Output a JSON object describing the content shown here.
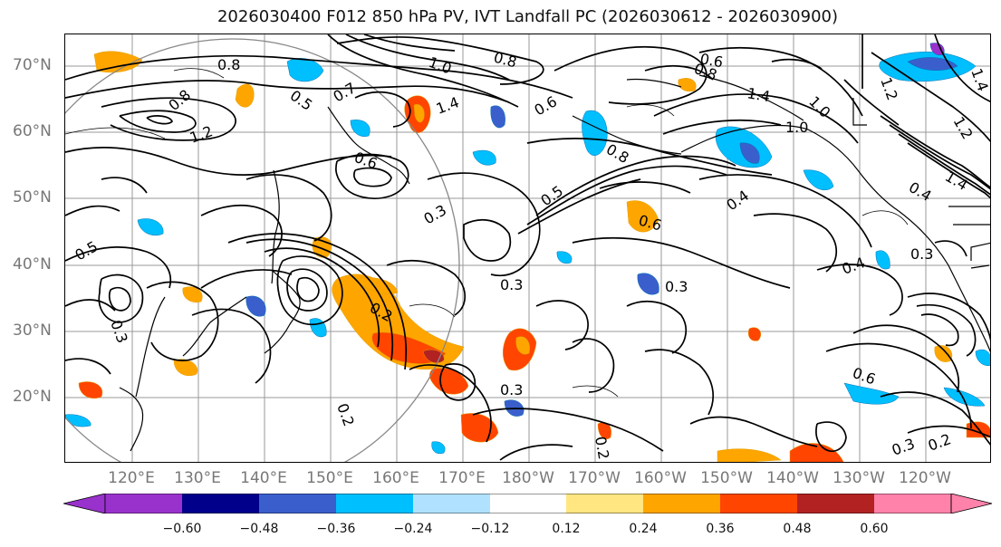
{
  "title": "2026030400 F012 850 hPa PV, IVT Landfall PC (2026030612 - 2026030900)",
  "map": {
    "projection": "PlateCarree (Pacific-centered)",
    "lat_labels": [
      "70°N",
      "60°N",
      "50°N",
      "40°N",
      "30°N",
      "20°N"
    ],
    "lon_labels": [
      "120°E",
      "130°E",
      "140°E",
      "150°E",
      "160°E",
      "170°E",
      "180°W",
      "170°W",
      "160°W",
      "150°W",
      "140°W",
      "130°W",
      "120°W"
    ],
    "contour_labels": [
      "0.8",
      "1.0",
      "0.8",
      "0.6",
      "1.4",
      "0.8",
      "0.5",
      "0.7",
      "1.4",
      "0.6",
      "1.2",
      "0.8",
      "1.4",
      "1.0",
      "1.0",
      "1.2",
      "1.2",
      "0.6",
      "0.8",
      "0.5",
      "0.4",
      "1.4",
      "0.4",
      "0.6",
      "0.3",
      "0.3",
      "0.5",
      "0.3",
      "0.3",
      "0.4",
      "0.3",
      "0.2",
      "0.6",
      "0.3",
      "0.2",
      "0.2",
      "0.3",
      "0.2"
    ]
  },
  "colorbar": {
    "ticks": [
      "−0.60",
      "−0.48",
      "−0.36",
      "−0.24",
      "−0.12",
      "0.12",
      "0.24",
      "0.36",
      "0.48",
      "0.60"
    ],
    "colors": [
      "#9932cc",
      "#00008b",
      "#3a5fcd",
      "#00bfff",
      "#b0e2ff",
      "#ffffff",
      "#ffe680",
      "#ffa500",
      "#ff4500",
      "#b22222",
      "#ff82ab"
    ]
  }
}
